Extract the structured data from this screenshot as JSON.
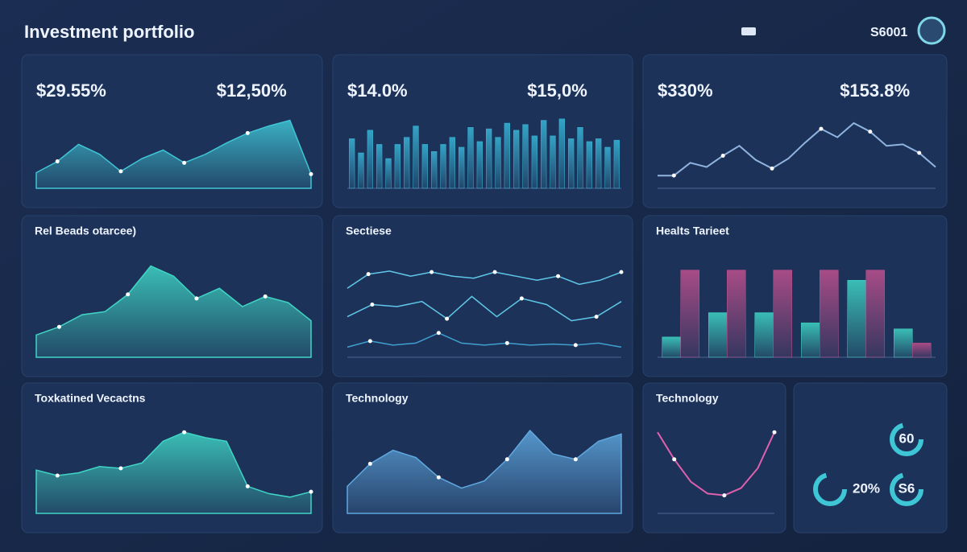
{
  "header": {
    "title": "Investment portfolio",
    "account": "S6001"
  },
  "panels": [
    {
      "stats": [
        "$29.55%",
        "$12,50%"
      ],
      "chart": {
        "type": "area",
        "ylim": [
          0,
          100
        ],
        "series": [
          {
            "color": "#3fc6d6",
            "values": [
              22,
              38,
              62,
              48,
              24,
              42,
              54,
              36,
              48,
              64,
              78,
              88,
              96,
              20
            ]
          }
        ]
      }
    },
    {
      "stats": [
        "$14.0%",
        "$15,0%"
      ],
      "chart": {
        "type": "bar",
        "ylim": [
          0,
          100
        ],
        "series": [
          {
            "color": "#38b6d8",
            "values": [
              70,
              50,
              82,
              62,
              42,
              62,
              72,
              88,
              62,
              52,
              62,
              72,
              58,
              86,
              66,
              84,
              72,
              92,
              82,
              90,
              74,
              96,
              74,
              98,
              70,
              86,
              66,
              70,
              58,
              68
            ]
          }
        ]
      }
    },
    {
      "stats": [
        "$330%",
        "$153.8%"
      ],
      "chart": {
        "type": "line",
        "ylim": [
          0,
          100
        ],
        "series": [
          {
            "color": "#8fb4e0",
            "values": [
              18,
              18,
              36,
              30,
              46,
              60,
              40,
              28,
              42,
              64,
              84,
              72,
              92,
              80,
              60,
              62,
              50,
              30
            ]
          }
        ]
      }
    },
    {
      "title": "Rel Beads otarcee)",
      "chart": {
        "type": "area",
        "ylim": [
          0,
          100
        ],
        "series": [
          {
            "color": "#3fd6c6",
            "values": [
              22,
              30,
              42,
              45,
              62,
              90,
              80,
              58,
              68,
              50,
              60,
              54,
              36
            ]
          }
        ]
      }
    },
    {
      "title": "Sectiese",
      "chart": {
        "type": "line",
        "ylim": [
          0,
          100
        ],
        "series": [
          {
            "color": "#5fc8e8",
            "values": [
              68,
              82,
              85,
              80,
              84,
              80,
              78,
              84,
              80,
              76,
              80,
              72,
              76,
              84
            ]
          },
          {
            "color": "#5fc8e8",
            "values": [
              40,
              52,
              50,
              55,
              38,
              60,
              40,
              58,
              52,
              36,
              40,
              55
            ]
          },
          {
            "color": "#3fa0d0",
            "values": [
              10,
              16,
              12,
              14,
              24,
              14,
              12,
              14,
              12,
              13,
              12,
              14,
              10
            ]
          }
        ]
      }
    },
    {
      "title": "Healts Tarieet",
      "chart": {
        "type": "bar",
        "ylim": [
          0,
          100
        ],
        "series": [
          {
            "color": "#3fd6c6",
            "values": [
              20,
              44,
              44,
              34,
              76,
              28
            ]
          },
          {
            "color": "#c0508e",
            "values": [
              86,
              86,
              86,
              86,
              86,
              14
            ]
          }
        ]
      }
    },
    {
      "title": "Toxkatined Vecactns",
      "chart": {
        "type": "area",
        "ylim": [
          0,
          100
        ],
        "series": [
          {
            "color": "#3fd6c6",
            "values": [
              48,
              42,
              45,
              52,
              50,
              56,
              80,
              90,
              84,
              80,
              30,
              22,
              18,
              24
            ]
          }
        ]
      }
    },
    {
      "title": "Technology",
      "chart": {
        "type": "area",
        "ylim": [
          0,
          100
        ],
        "series": [
          {
            "color": "#5fa8e0",
            "values": [
              30,
              55,
              70,
              62,
              40,
              28,
              36,
              60,
              92,
              66,
              60,
              80,
              88
            ]
          }
        ]
      }
    },
    {
      "title": "Technology",
      "chart": {
        "type": "line",
        "ylim": [
          0,
          100
        ],
        "series": [
          {
            "color": "#e060b0",
            "values": [
              90,
              60,
              35,
              22,
              20,
              28,
              50,
              90
            ]
          }
        ]
      }
    },
    {
      "chart": {
        "type": "rings",
        "items": [
          "60",
          "20%",
          "S6"
        ]
      }
    }
  ]
}
